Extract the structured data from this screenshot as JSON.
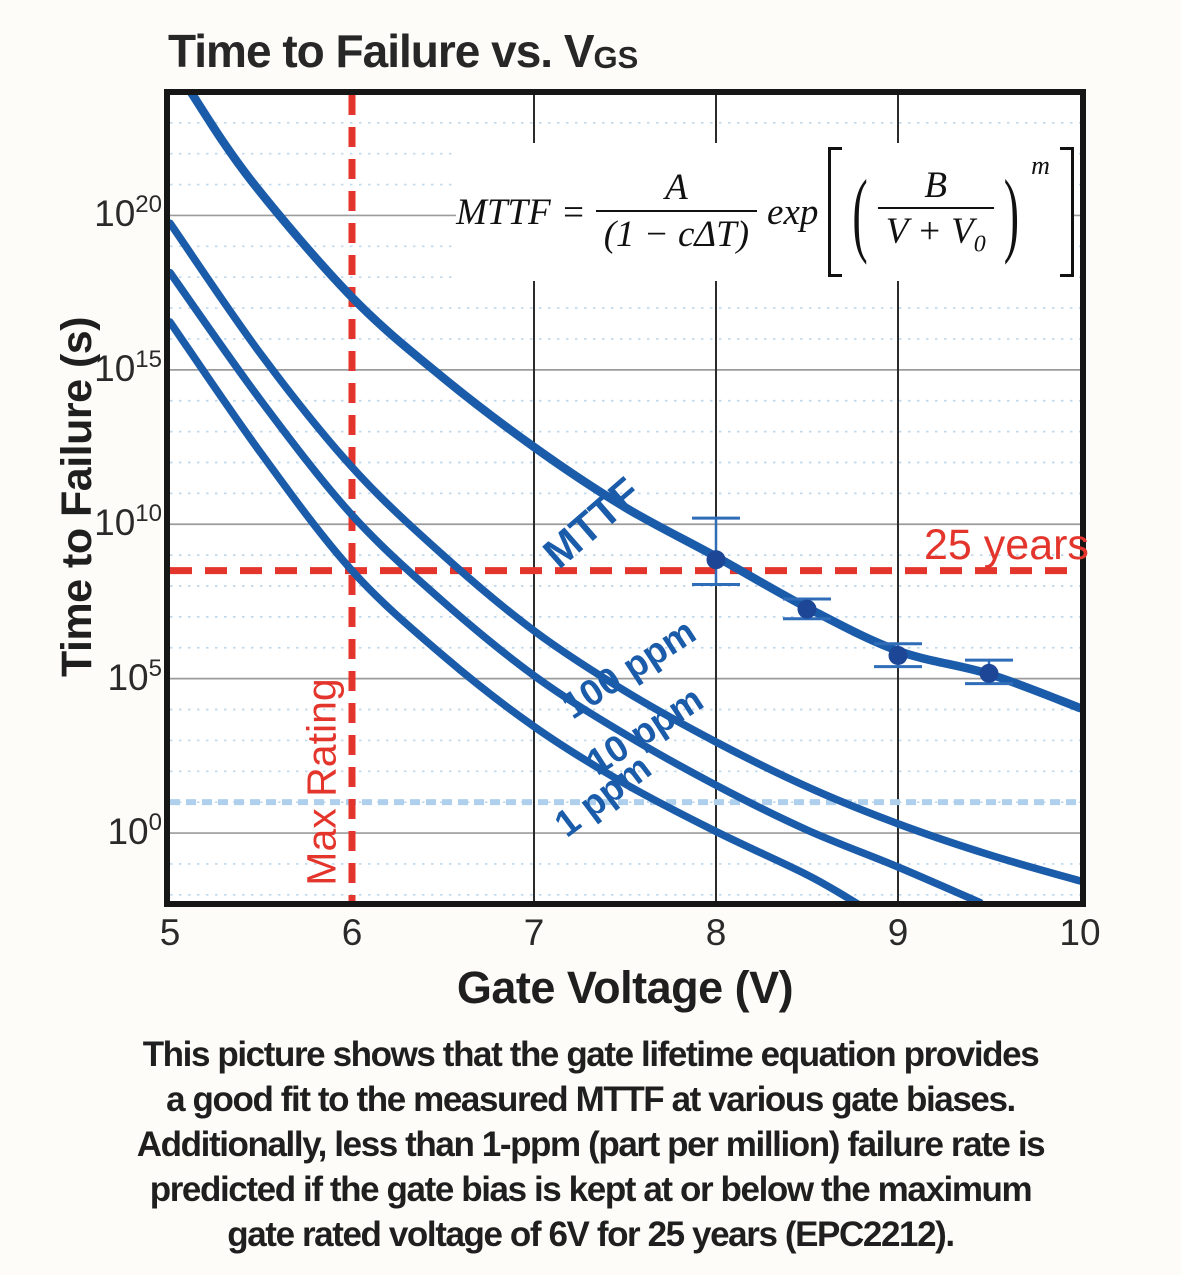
{
  "title": {
    "text": "Time to Failure vs. V",
    "subscript": "GS"
  },
  "y_axis": {
    "label": "Time to Failure (s)",
    "tick_base": "10",
    "tick_exponents": [
      20,
      15,
      10,
      5,
      0
    ]
  },
  "x_axis": {
    "label": "Gate Voltage (V)",
    "ticks": [
      "5",
      "6",
      "7",
      "8",
      "9",
      "10"
    ]
  },
  "equation": {
    "lhs": "MTTF",
    "equals": "=",
    "frac1_num": "A",
    "frac1_den": "(1 − cΔT)",
    "exp_label": "exp",
    "frac2_num": "B",
    "frac2_den_main": "V + V",
    "frac2_den_sub": "0",
    "power": "m"
  },
  "labels": {
    "mttf": "MTTF",
    "ppm100": "100 ppm",
    "ppm10": "10 ppm",
    "ppm1": "1 ppm",
    "years25": "25 years",
    "max_rating": "Max Rating"
  },
  "caption": {
    "lines": [
      "This picture shows that the gate lifetime equation provides",
      "a good fit to the measured MTTF at various gate biases.",
      "Additionally, less than 1-ppm (part per million) failure rate is",
      "predicted if the gate bias is kept at or below the maximum",
      "gate rated voltage of 6V for 25 years (EPC2212)."
    ]
  },
  "colors": {
    "curve_blue": "#1b5caa",
    "point_blue": "#1d4796",
    "errorbar_blue": "#2f6db8",
    "reference_red": "#e3352b",
    "highlight_light_blue": "#aed0ed",
    "grid_minor": "#bfd8ec",
    "grid_major": "#9b9b9b",
    "grid_vertical": "#2b2b2b",
    "plot_border": "#161616"
  },
  "chart_data": {
    "type": "line",
    "title": "Time to Failure vs. VGS",
    "xlabel": "Gate Voltage (V)",
    "ylabel": "Time to Failure (s)",
    "x_range": [
      5,
      10
    ],
    "x_ticks": [
      5,
      6,
      7,
      8,
      9,
      10
    ],
    "y_scale": "log10",
    "y_range_log10": [
      -2.2,
      23.9
    ],
    "y_major_tick_exponents": [
      0,
      5,
      10,
      15,
      20
    ],
    "grid": "major-solid, minor-dotted-per-decade, vertical-at-integer-volts",
    "legend_position": "labels-on-curves",
    "series": [
      {
        "name": "MTTF",
        "points_v_log10s": [
          [
            5.0,
            25.2
          ],
          [
            5.12,
            23.95
          ],
          [
            5.45,
            21.1
          ],
          [
            6,
            17.35
          ],
          [
            6.5,
            14.75
          ],
          [
            7,
            12.5
          ],
          [
            7.5,
            10.55
          ],
          [
            8,
            8.95
          ],
          [
            8.5,
            7.3
          ],
          [
            9,
            5.9
          ],
          [
            9.5,
            5.15
          ],
          [
            10,
            4.05
          ]
        ]
      },
      {
        "name": "100 ppm",
        "points_v_log10s": [
          [
            5,
            19.75
          ],
          [
            5.5,
            15.5
          ],
          [
            6,
            11.85
          ],
          [
            6.5,
            9.0
          ],
          [
            7,
            6.55
          ],
          [
            7.5,
            4.6
          ],
          [
            8,
            2.95
          ],
          [
            8.5,
            1.5
          ],
          [
            9,
            0.3
          ],
          [
            9.5,
            -0.7
          ],
          [
            10,
            -1.55
          ]
        ]
      },
      {
        "name": "10 ppm",
        "points_v_log10s": [
          [
            5,
            18.15
          ],
          [
            5.5,
            14.0
          ],
          [
            6,
            10.3
          ],
          [
            6.5,
            7.5
          ],
          [
            7,
            5.1
          ],
          [
            7.5,
            3.2
          ],
          [
            8,
            1.55
          ],
          [
            8.5,
            0.1
          ],
          [
            9,
            -1.1
          ],
          [
            9.45,
            -2.25
          ]
        ]
      },
      {
        "name": "1 ppm",
        "points_v_log10s": [
          [
            5,
            16.55
          ],
          [
            5.5,
            12.3
          ],
          [
            6,
            8.5
          ],
          [
            6.5,
            5.75
          ],
          [
            7,
            3.45
          ],
          [
            7.5,
            1.6
          ],
          [
            8,
            0.05
          ],
          [
            8.5,
            -1.35
          ],
          [
            8.78,
            -2.3
          ]
        ]
      }
    ],
    "measured_points": [
      {
        "v": 8.0,
        "log10_s": 8.85,
        "err_hi_log10": 10.2,
        "err_lo_log10": 8.05
      },
      {
        "v": 8.5,
        "log10_s": 7.25,
        "err_hi_log10": 7.58,
        "err_lo_log10": 6.94
      },
      {
        "v": 9.0,
        "log10_s": 5.75,
        "err_hi_log10": 6.13,
        "err_lo_log10": 5.39
      },
      {
        "v": 9.5,
        "log10_s": 5.17,
        "err_hi_log10": 5.6,
        "err_lo_log10": 4.84
      }
    ],
    "reference_lines": [
      {
        "label": "25 years",
        "orientation": "horizontal",
        "log10_s": 8.5,
        "style": "red-dashed"
      },
      {
        "label": "Max Rating",
        "orientation": "vertical",
        "v": 6,
        "style": "red-dashed"
      },
      {
        "label": "",
        "orientation": "horizontal",
        "log10_s": 1.0,
        "style": "light-blue-dashed"
      }
    ],
    "vertical_gridlines_v": [
      7,
      8,
      9
    ]
  }
}
